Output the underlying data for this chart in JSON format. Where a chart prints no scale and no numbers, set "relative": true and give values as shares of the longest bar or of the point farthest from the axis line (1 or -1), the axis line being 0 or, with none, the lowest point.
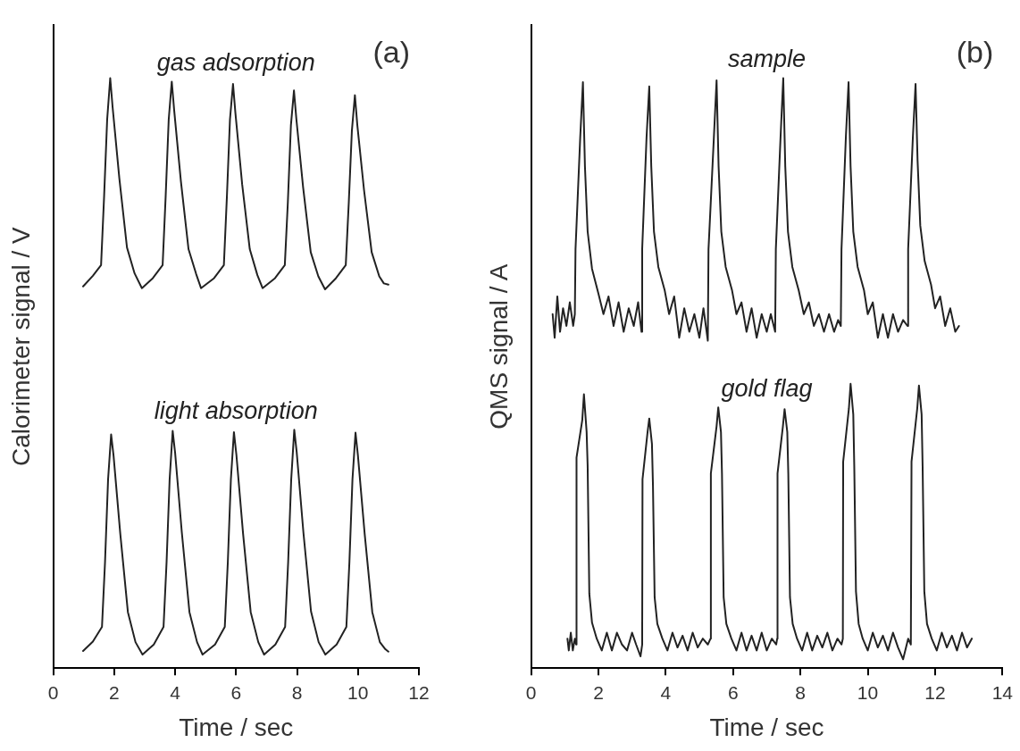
{
  "chart_data": [
    {
      "type": "line",
      "relative": true,
      "xlabel": "Time / sec",
      "ylabel": "Calorimeter signal / V",
      "xlim": [
        0,
        12
      ],
      "xticks": [
        0,
        2,
        4,
        6,
        8,
        10,
        12
      ],
      "grid": false,
      "legend": false,
      "marker": "none",
      "line_style": "solid",
      "annotations": [
        "(a)"
      ],
      "series": [
        {
          "name": "gas adsorption",
          "color": "#222222",
          "x": [
            0.98,
            1.3,
            1.57,
            1.67,
            1.77,
            1.87,
            1.95,
            2.17,
            2.42,
            2.67,
            2.91,
            3.27,
            3.59,
            3.69,
            3.79,
            3.89,
            3.97,
            4.19,
            4.44,
            4.69,
            4.85,
            5.28,
            5.6,
            5.7,
            5.8,
            5.9,
            5.98,
            6.2,
            6.45,
            6.7,
            6.87,
            7.28,
            7.6,
            7.7,
            7.8,
            7.9,
            7.98,
            8.2,
            8.45,
            8.7,
            8.92,
            9.28,
            9.6,
            9.7,
            9.8,
            9.9,
            9.98,
            10.2,
            10.45,
            10.7,
            10.85,
            11.0
          ],
          "values": [
            0.647,
            0.665,
            0.683,
            0.8,
            0.93,
            1.0,
            0.95,
            0.83,
            0.713,
            0.669,
            0.644,
            0.661,
            0.683,
            0.8,
            0.93,
            0.994,
            0.945,
            0.825,
            0.71,
            0.668,
            0.644,
            0.661,
            0.683,
            0.8,
            0.93,
            0.99,
            0.94,
            0.82,
            0.71,
            0.666,
            0.644,
            0.661,
            0.683,
            0.79,
            0.92,
            0.979,
            0.93,
            0.815,
            0.705,
            0.664,
            0.642,
            0.661,
            0.683,
            0.79,
            0.91,
            0.971,
            0.92,
            0.81,
            0.705,
            0.664,
            0.652,
            0.65
          ]
        },
        {
          "name": "light absorption",
          "color": "#222222",
          "x": [
            0.98,
            1.3,
            1.6,
            1.7,
            1.8,
            1.9,
            1.98,
            2.2,
            2.45,
            2.7,
            2.93,
            3.3,
            3.62,
            3.72,
            3.82,
            3.92,
            4.0,
            4.22,
            4.47,
            4.72,
            4.9,
            5.31,
            5.63,
            5.73,
            5.83,
            5.93,
            6.01,
            6.23,
            6.48,
            6.73,
            6.92,
            7.29,
            7.61,
            7.71,
            7.81,
            7.91,
            7.99,
            8.21,
            8.46,
            8.71,
            8.93,
            9.3,
            9.62,
            9.72,
            9.82,
            9.92,
            10.0,
            10.22,
            10.47,
            10.72,
            10.9,
            11.0
          ],
          "values": [
            0.029,
            0.045,
            0.07,
            0.18,
            0.32,
            0.396,
            0.36,
            0.228,
            0.095,
            0.044,
            0.023,
            0.04,
            0.07,
            0.18,
            0.32,
            0.402,
            0.365,
            0.23,
            0.095,
            0.044,
            0.023,
            0.04,
            0.07,
            0.18,
            0.32,
            0.4,
            0.362,
            0.228,
            0.095,
            0.044,
            0.023,
            0.04,
            0.07,
            0.18,
            0.32,
            0.404,
            0.366,
            0.23,
            0.096,
            0.044,
            0.023,
            0.04,
            0.07,
            0.18,
            0.32,
            0.399,
            0.36,
            0.228,
            0.095,
            0.044,
            0.032,
            0.028
          ]
        }
      ]
    },
    {
      "type": "line",
      "relative": true,
      "xlabel": "Time / sec",
      "ylabel": "QMS signal / A",
      "xlim": [
        0,
        14
      ],
      "xticks": [
        0,
        2,
        4,
        6,
        8,
        10,
        12,
        14
      ],
      "grid": false,
      "legend": false,
      "marker": "none",
      "line_style": "solid",
      "annotations": [
        "(b)"
      ],
      "series": [
        {
          "name": "sample",
          "color": "#222222",
          "x": [
            0.64,
            0.7,
            0.78,
            0.86,
            0.95,
            1.05,
            1.15,
            1.25,
            1.3,
            1.32,
            1.46,
            1.54,
            1.6,
            1.68,
            1.81,
            2.0,
            2.15,
            2.3,
            2.45,
            2.6,
            2.75,
            2.9,
            3.05,
            3.18,
            3.28,
            3.3,
            3.43,
            3.51,
            3.57,
            3.65,
            3.78,
            3.97,
            4.1,
            4.25,
            4.4,
            4.55,
            4.7,
            4.85,
            5.0,
            5.12,
            5.25,
            5.27,
            5.43,
            5.51,
            5.57,
            5.65,
            5.78,
            5.97,
            6.1,
            6.25,
            6.4,
            6.55,
            6.7,
            6.85,
            7.0,
            7.12,
            7.25,
            7.27,
            7.41,
            7.49,
            7.55,
            7.63,
            7.76,
            7.95,
            8.1,
            8.25,
            8.4,
            8.55,
            8.7,
            8.85,
            9.0,
            9.12,
            9.2,
            9.22,
            9.35,
            9.43,
            9.49,
            9.57,
            9.7,
            9.89,
            10.0,
            10.15,
            10.3,
            10.45,
            10.6,
            10.75,
            10.9,
            11.05,
            11.18,
            11.2,
            11.34,
            11.42,
            11.48,
            11.56,
            11.69,
            11.88,
            12.0,
            12.15,
            12.3,
            12.45,
            12.6,
            12.71
          ],
          "values": [
            0.6,
            0.56,
            0.63,
            0.57,
            0.61,
            0.58,
            0.62,
            0.58,
            0.6,
            0.71,
            0.9,
            0.993,
            0.85,
            0.74,
            0.677,
            0.635,
            0.6,
            0.63,
            0.58,
            0.62,
            0.57,
            0.61,
            0.58,
            0.62,
            0.57,
            0.71,
            0.9,
            0.986,
            0.85,
            0.74,
            0.68,
            0.64,
            0.6,
            0.63,
            0.56,
            0.61,
            0.57,
            0.6,
            0.56,
            0.61,
            0.555,
            0.71,
            0.9,
            0.996,
            0.85,
            0.74,
            0.68,
            0.64,
            0.6,
            0.62,
            0.57,
            0.61,
            0.56,
            0.6,
            0.57,
            0.6,
            0.57,
            0.71,
            0.9,
            1.0,
            0.85,
            0.74,
            0.68,
            0.64,
            0.6,
            0.62,
            0.58,
            0.6,
            0.57,
            0.6,
            0.57,
            0.59,
            0.58,
            0.71,
            0.9,
            0.993,
            0.85,
            0.74,
            0.68,
            0.64,
            0.6,
            0.62,
            0.56,
            0.6,
            0.56,
            0.6,
            0.57,
            0.59,
            0.58,
            0.71,
            0.9,
            0.99,
            0.86,
            0.75,
            0.69,
            0.65,
            0.61,
            0.63,
            0.58,
            0.61,
            0.57,
            0.58
          ]
        },
        {
          "name": "gold flag",
          "color": "#222222",
          "x": [
            1.08,
            1.12,
            1.18,
            1.24,
            1.3,
            1.34,
            1.35,
            1.52,
            1.57,
            1.65,
            1.68,
            1.73,
            1.81,
            1.95,
            2.1,
            2.25,
            2.4,
            2.55,
            2.7,
            2.85,
            3.0,
            3.12,
            3.25,
            3.3,
            3.31,
            3.46,
            3.51,
            3.59,
            3.62,
            3.67,
            3.75,
            3.9,
            4.05,
            4.2,
            4.35,
            4.5,
            4.65,
            4.8,
            4.95,
            5.1,
            5.25,
            5.33,
            5.34,
            5.51,
            5.56,
            5.64,
            5.67,
            5.72,
            5.8,
            5.95,
            6.1,
            6.25,
            6.4,
            6.55,
            6.7,
            6.85,
            7.0,
            7.15,
            7.28,
            7.31,
            7.32,
            7.48,
            7.53,
            7.61,
            7.64,
            7.69,
            7.77,
            7.9,
            8.05,
            8.2,
            8.35,
            8.5,
            8.65,
            8.8,
            8.95,
            9.1,
            9.22,
            9.26,
            9.27,
            9.44,
            9.49,
            9.57,
            9.6,
            9.65,
            9.73,
            9.85,
            10.0,
            10.15,
            10.3,
            10.45,
            10.6,
            10.75,
            10.9,
            11.05,
            11.2,
            11.28,
            11.3,
            11.47,
            11.52,
            11.6,
            11.63,
            11.68,
            11.76,
            11.9,
            12.05,
            12.2,
            12.35,
            12.5,
            12.65,
            12.8,
            12.95,
            13.09
          ],
          "values": [
            0.05,
            0.03,
            0.06,
            0.03,
            0.05,
            0.04,
            0.357,
            0.42,
            0.464,
            0.4,
            0.343,
            0.126,
            0.077,
            0.05,
            0.03,
            0.06,
            0.03,
            0.06,
            0.04,
            0.03,
            0.06,
            0.04,
            0.02,
            0.04,
            0.32,
            0.4,
            0.423,
            0.38,
            0.31,
            0.12,
            0.075,
            0.05,
            0.03,
            0.06,
            0.035,
            0.055,
            0.03,
            0.06,
            0.035,
            0.05,
            0.04,
            0.05,
            0.33,
            0.41,
            0.442,
            0.4,
            0.33,
            0.12,
            0.075,
            0.05,
            0.03,
            0.06,
            0.03,
            0.055,
            0.03,
            0.06,
            0.03,
            0.05,
            0.04,
            0.05,
            0.33,
            0.41,
            0.439,
            0.4,
            0.33,
            0.12,
            0.075,
            0.05,
            0.03,
            0.06,
            0.03,
            0.055,
            0.035,
            0.06,
            0.03,
            0.05,
            0.04,
            0.05,
            0.35,
            0.44,
            0.482,
            0.43,
            0.34,
            0.13,
            0.075,
            0.05,
            0.03,
            0.06,
            0.035,
            0.055,
            0.03,
            0.06,
            0.035,
            0.015,
            0.05,
            0.04,
            0.35,
            0.44,
            0.479,
            0.43,
            0.34,
            0.13,
            0.075,
            0.05,
            0.03,
            0.06,
            0.035,
            0.055,
            0.03,
            0.06,
            0.035,
            0.05
          ]
        }
      ]
    }
  ]
}
